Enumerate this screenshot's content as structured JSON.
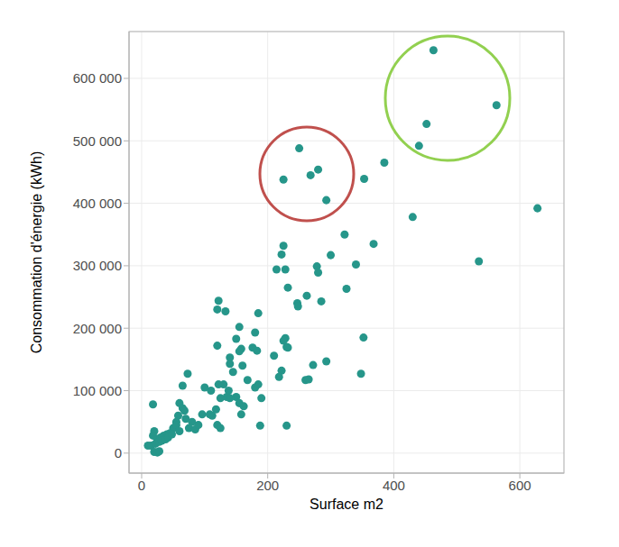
{
  "chart_data": {
    "type": "scatter",
    "xlabel": "Surface m2",
    "ylabel": "Consommation d'énergie (kWh)",
    "color": "#26968a",
    "marker": "circle",
    "grid": true,
    "xlim": [
      -20,
      670
    ],
    "xticks": [
      0,
      200,
      400,
      600
    ],
    "ylim": [
      -32000,
      675000
    ],
    "yticks": [
      0,
      {
        "value": 100000,
        "label": "100 000"
      },
      {
        "value": 200000,
        "label": "200 000"
      },
      {
        "value": 300000,
        "label": "300 000"
      },
      {
        "value": 400000,
        "label": "400 000"
      },
      {
        "value": 500000,
        "label": "500 000"
      },
      {
        "value": 600000,
        "label": "600 000"
      }
    ],
    "x": [
      463,
      563,
      452,
      440,
      250,
      280,
      268,
      225,
      293,
      353,
      385,
      430,
      628,
      535,
      322,
      368,
      340,
      325,
      225,
      222,
      214,
      228,
      232,
      278,
      280,
      300,
      262,
      247,
      248,
      285,
      352,
      348,
      293,
      272,
      260,
      265,
      228,
      225,
      230,
      232,
      210,
      222,
      230,
      188,
      185,
      218,
      122,
      120,
      133,
      155,
      150,
      158,
      155,
      180,
      176,
      183,
      140,
      140,
      145,
      120,
      130,
      122,
      160,
      168,
      180,
      190,
      150,
      155,
      135,
      140,
      125,
      110,
      100,
      112,
      118,
      108,
      96,
      120,
      125,
      162,
      158,
      138,
      185,
      73,
      65,
      60,
      65,
      58,
      55,
      70,
      80,
      75,
      85,
      90,
      50,
      45,
      40,
      35,
      30,
      25,
      20,
      18,
      15,
      22,
      28,
      32,
      38,
      42,
      48,
      10,
      20,
      25,
      28,
      18,
      55,
      60,
      68
    ],
    "values": [
      645000,
      557000,
      527000,
      492000,
      488000,
      454000,
      445000,
      438000,
      405000,
      439000,
      465000,
      378000,
      392000,
      307000,
      350000,
      335000,
      302000,
      263000,
      332000,
      318000,
      294000,
      294000,
      265000,
      299000,
      289000,
      317000,
      252000,
      240000,
      235000,
      243000,
      185000,
      127000,
      147000,
      141000,
      117000,
      118000,
      184000,
      180000,
      170000,
      169000,
      156000,
      132000,
      44000,
      44000,
      224000,
      122000,
      244000,
      230000,
      227000,
      202000,
      183000,
      167000,
      163000,
      193000,
      169000,
      164000,
      153000,
      143000,
      130000,
      172000,
      110000,
      110000,
      140000,
      117000,
      105000,
      88000,
      90000,
      80000,
      90000,
      88000,
      88000,
      100000,
      105000,
      60000,
      70000,
      62000,
      62000,
      45000,
      40000,
      75000,
      62000,
      100000,
      110000,
      127000,
      108000,
      80000,
      72000,
      60000,
      50000,
      55000,
      50000,
      40000,
      38000,
      45000,
      40000,
      32000,
      30000,
      28000,
      25000,
      22000,
      35000,
      28000,
      12000,
      15000,
      18000,
      20000,
      22000,
      25000,
      30000,
      12000,
      2000,
      1000,
      3000,
      78000,
      45000,
      35000,
      68000
    ]
  }
}
